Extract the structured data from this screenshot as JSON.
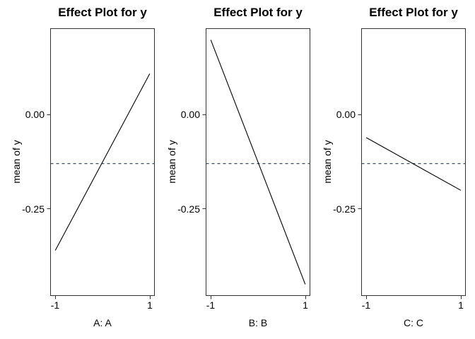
{
  "styles": {
    "background": "#ffffff",
    "line_color": "#000000",
    "mean_line_color": "#3a5168",
    "frame_color": "#333333",
    "text_color": "#000000",
    "dash_pattern": "4 4"
  },
  "chart_data": [
    {
      "type": "line",
      "title": "Effect Plot for y",
      "xlabel": "A: A",
      "ylabel": "mean of y",
      "x": [
        -1,
        1
      ],
      "values": [
        -0.36,
        0.11
      ],
      "grand_mean": -0.129,
      "grand_mean_style": "dashed",
      "xlim": [
        -1.1,
        1.1
      ],
      "ylim": [
        -0.48,
        0.23
      ],
      "xticks": [
        -1,
        1
      ],
      "xtick_labels": [
        "-1",
        "1"
      ],
      "yticks": [
        0,
        -0.25
      ],
      "ytick_labels": [
        "0.00",
        "-0.25"
      ],
      "grid": false
    },
    {
      "type": "line",
      "title": "Effect Plot for y",
      "xlabel": "B: B",
      "ylabel": "mean of y",
      "x": [
        -1,
        1
      ],
      "values": [
        0.2,
        -0.45
      ],
      "grand_mean": -0.129,
      "grand_mean_style": "dashed",
      "xlim": [
        -1.1,
        1.1
      ],
      "ylim": [
        -0.48,
        0.23
      ],
      "xticks": [
        -1,
        1
      ],
      "xtick_labels": [
        "-1",
        "1"
      ],
      "yticks": [
        0,
        -0.25
      ],
      "ytick_labels": [
        "0.00",
        "-0.25"
      ],
      "grid": false
    },
    {
      "type": "line",
      "title": "Effect Plot for y",
      "xlabel": "C: C",
      "ylabel": "mean of y",
      "x": [
        -1,
        1
      ],
      "values": [
        -0.06,
        -0.2
      ],
      "grand_mean": -0.129,
      "grand_mean_style": "dashed",
      "xlim": [
        -1.1,
        1.1
      ],
      "ylim": [
        -0.48,
        0.23
      ],
      "xticks": [
        -1,
        1
      ],
      "xtick_labels": [
        "-1",
        "1"
      ],
      "yticks": [
        0,
        -0.25
      ],
      "ytick_labels": [
        "0.00",
        "-0.25"
      ],
      "grid": false
    }
  ]
}
